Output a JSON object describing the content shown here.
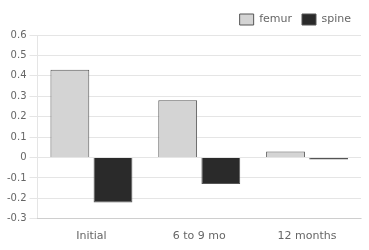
{
  "chart_data": {
    "type": "bar",
    "categories": [
      "Initial",
      "6 to 9 mo",
      "12 months"
    ],
    "series": [
      {
        "name": "femur",
        "color": "#d4d4d4",
        "values": [
          0.43,
          0.28,
          0.03
        ]
      },
      {
        "name": "spine",
        "color": "#2a2a2a",
        "values": [
          -0.22,
          -0.13,
          -0.01
        ]
      }
    ],
    "ylim": [
      -0.3,
      0.6
    ],
    "yticks": [
      -0.3,
      -0.2,
      -0.1,
      0.0,
      0.1,
      0.2,
      0.3,
      0.4,
      0.5,
      0.6
    ],
    "grid": true,
    "legend": "upper right"
  }
}
